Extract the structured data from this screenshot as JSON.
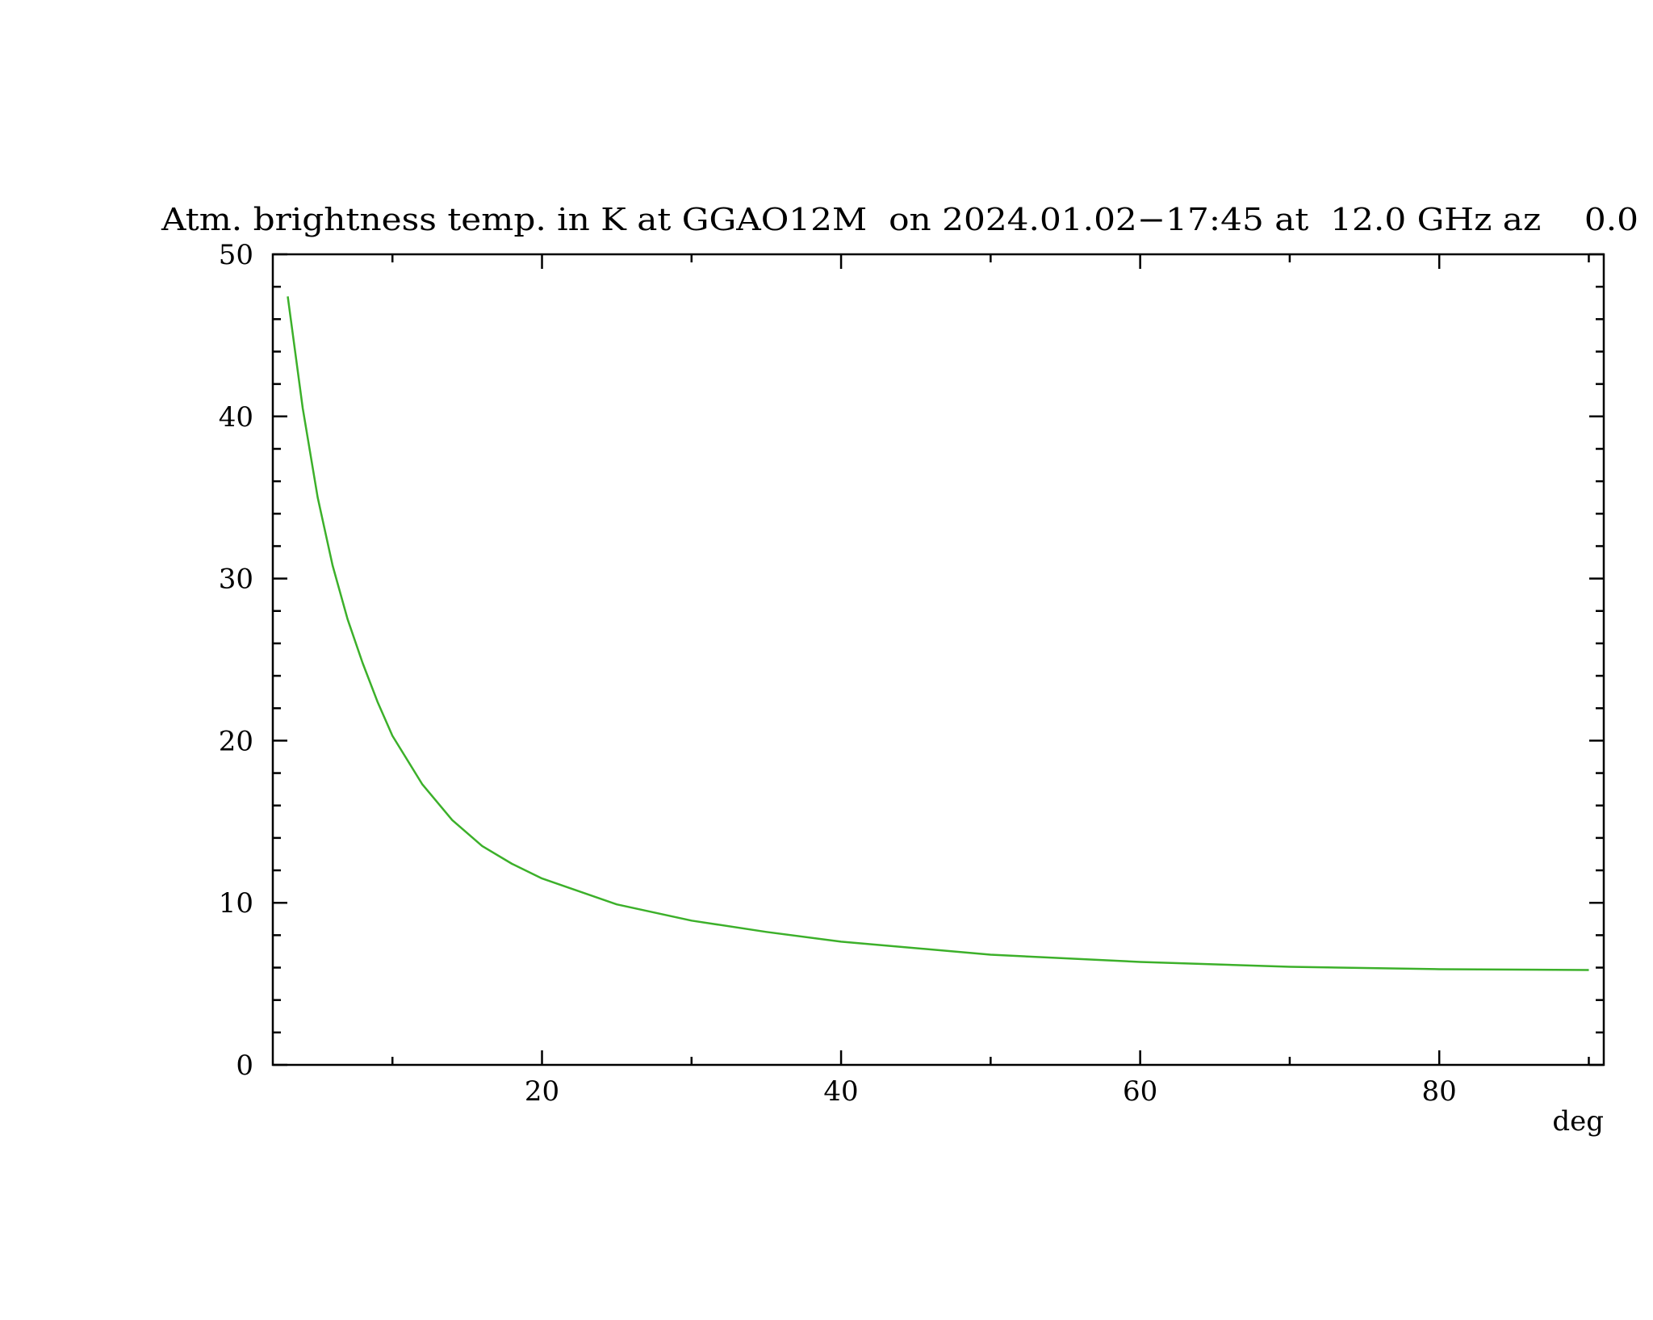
{
  "chart_data": {
    "type": "line",
    "title": "Atm. brightness temp. in K at GGAO12M  on 2024.01.02−17:45 at  12.0 GHz az    0.0",
    "x_label": "deg",
    "x": [
      3,
      4,
      5,
      6,
      7,
      8,
      9,
      10,
      12,
      14,
      16,
      18,
      20,
      25,
      30,
      35,
      40,
      50,
      60,
      70,
      80,
      90
    ],
    "series": [
      {
        "color": "#3cb02a",
        "values": [
          47.4,
          40.5,
          35,
          30.8,
          27.5,
          24.8,
          22.4,
          20.3,
          17.3,
          15.1,
          13.5,
          12.4,
          11.5,
          9.9,
          8.9,
          8.2,
          7.6,
          6.8,
          6.35,
          6.05,
          5.9,
          5.85
        ]
      }
    ],
    "xlim": [
      2,
      91
    ],
    "ylim": [
      0,
      50
    ],
    "xticks": [
      20,
      40,
      60,
      80
    ],
    "xminorticks": [
      10,
      30,
      50,
      70,
      90
    ],
    "yticks": [
      0,
      10,
      20,
      30,
      40,
      50
    ],
    "yminorticks": [
      2,
      4,
      6,
      8,
      12,
      14,
      16,
      18,
      22,
      24,
      26,
      28,
      32,
      34,
      36,
      38,
      42,
      44,
      46,
      48
    ]
  }
}
